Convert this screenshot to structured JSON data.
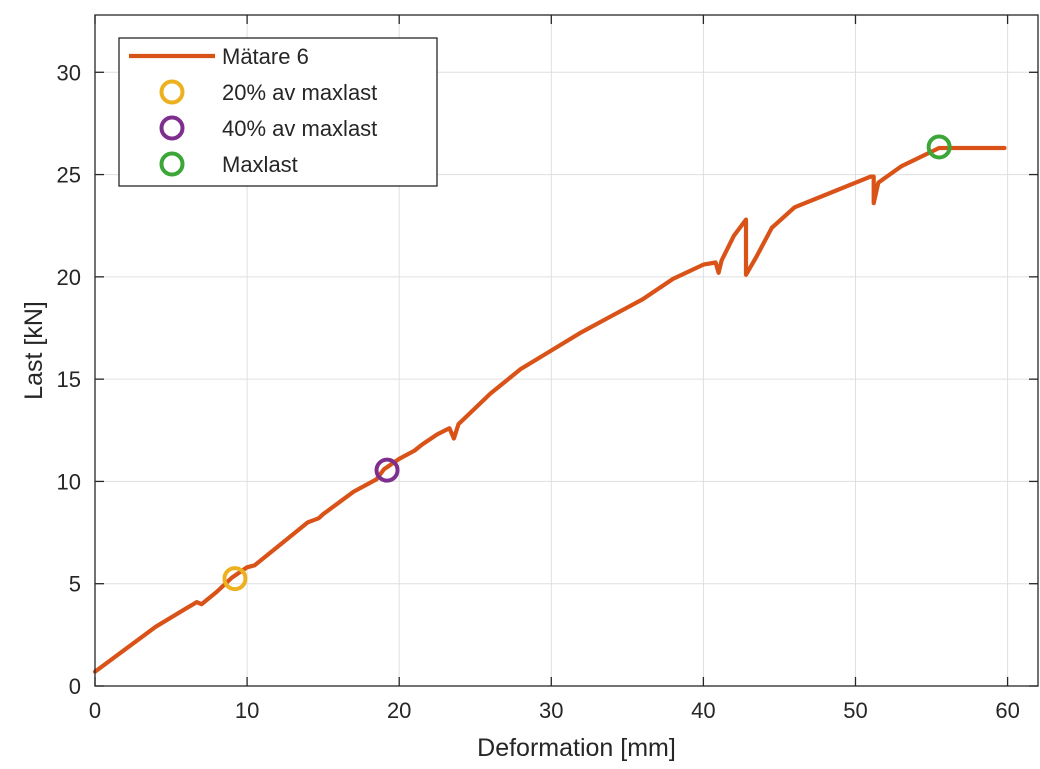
{
  "chart_data": {
    "type": "line",
    "xlabel": "Deformation [mm]",
    "ylabel": "Last [kN]",
    "xlim": [
      0,
      62
    ],
    "ylim": [
      0,
      32.8
    ],
    "xticks": [
      0,
      10,
      20,
      30,
      40,
      50,
      60
    ],
    "yticks": [
      0,
      5,
      10,
      15,
      20,
      25,
      30
    ],
    "grid": true,
    "legend_position": "top-left",
    "series": [
      {
        "name": "Mätare 6",
        "kind": "line",
        "color": "#D95319",
        "x": [
          0,
          2,
          4,
          6,
          6.7,
          7,
          8,
          9,
          10,
          10.5,
          12,
          14,
          14.7,
          15,
          17,
          18.5,
          19,
          20,
          21,
          21.5,
          22.5,
          23.3,
          23.6,
          23.9,
          26,
          28,
          30,
          32,
          34,
          36,
          38,
          40,
          40.8,
          41,
          41.2,
          42,
          42.8,
          42.8,
          43.5,
          44.5,
          46,
          48,
          50,
          51,
          51.2,
          51.2,
          51.5,
          53,
          55.5,
          58,
          59.8
        ],
        "y": [
          0.7,
          1.8,
          2.9,
          3.8,
          4.1,
          4.0,
          4.6,
          5.3,
          5.8,
          5.9,
          6.8,
          8.0,
          8.2,
          8.4,
          9.5,
          10.1,
          10.6,
          11.1,
          11.5,
          11.8,
          12.3,
          12.6,
          12.1,
          12.8,
          14.3,
          15.5,
          16.4,
          17.3,
          18.1,
          18.9,
          19.9,
          20.6,
          20.7,
          20.2,
          20.8,
          22.0,
          22.8,
          20.1,
          21.0,
          22.4,
          23.4,
          24.0,
          24.6,
          24.9,
          24.9,
          23.6,
          24.6,
          25.4,
          26.3,
          26.3,
          26.3
        ]
      },
      {
        "name": "20% av maxlast",
        "kind": "marker",
        "color": "#EDB120",
        "x": [
          9.2
        ],
        "y": [
          5.25
        ]
      },
      {
        "name": "40% av maxlast",
        "kind": "marker",
        "color": "#7E2F8E",
        "x": [
          19.2
        ],
        "y": [
          10.55
        ]
      },
      {
        "name": "Maxlast",
        "kind": "marker",
        "color": "#3CA638",
        "x": [
          55.5
        ],
        "y": [
          26.35
        ]
      }
    ]
  }
}
